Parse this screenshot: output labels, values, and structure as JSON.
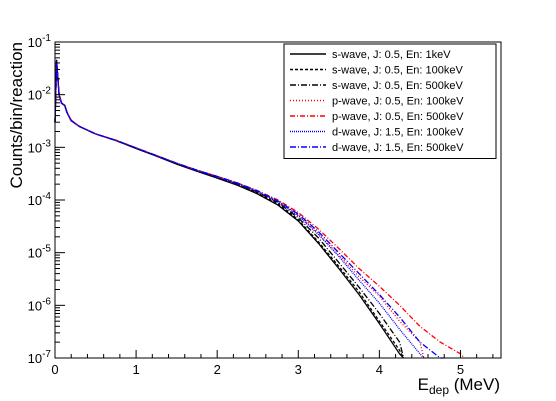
{
  "chart_data": {
    "type": "line",
    "title": "",
    "xlabel": {
      "main": "E",
      "sub": "dep",
      "unit": " (MeV)"
    },
    "ylabel": "Counts/bin/reaction",
    "xlim": [
      0,
      5.5
    ],
    "ylim": [
      1e-07,
      0.1
    ],
    "yscale": "log",
    "grid": false,
    "legend_position": "top-right",
    "x_ticks": [
      0,
      1,
      2,
      3,
      4,
      5
    ],
    "y_ticks": [
      {
        "value": 1e-07,
        "base": "10",
        "exp": "-7"
      },
      {
        "value": 1e-06,
        "base": "10",
        "exp": "-6"
      },
      {
        "value": 1e-05,
        "base": "10",
        "exp": "-5"
      },
      {
        "value": 0.0001,
        "base": "10",
        "exp": "-4"
      },
      {
        "value": 0.001,
        "base": "10",
        "exp": "-3"
      },
      {
        "value": 0.01,
        "base": "10",
        "exp": "-2"
      },
      {
        "value": 0.1,
        "base": "10",
        "exp": "-1"
      }
    ],
    "shared_x": [
      0.0,
      0.02,
      0.05,
      0.08,
      0.1,
      0.12,
      0.15,
      0.2,
      0.3,
      0.5,
      0.75,
      1.0,
      1.25,
      1.5,
      1.75,
      2.0,
      2.25,
      2.5,
      2.75,
      3.0,
      3.25,
      3.5,
      3.75,
      4.0,
      4.25,
      4.5,
      4.75,
      5.0,
      5.25
    ],
    "series": [
      {
        "name": "s-wave, J: 0.5, En: 1keV",
        "color": "#000000",
        "dash": "solid",
        "values": [
          0.003,
          0.045,
          0.01,
          0.007,
          0.0065,
          0.0063,
          0.0045,
          0.0032,
          0.0025,
          0.0018,
          0.00135,
          0.00095,
          0.00068,
          0.00048,
          0.00035,
          0.00026,
          0.00019,
          0.00013,
          8e-05,
          4e-05,
          1.5e-05,
          5e-06,
          1.6e-06,
          4.5e-07,
          1.2e-07,
          null,
          null,
          null,
          null
        ]
      },
      {
        "name": "s-wave, J: 0.5, En: 100keV",
        "color": "#000000",
        "dash": "3,2",
        "values": [
          0.003,
          0.046,
          0.0101,
          0.007,
          0.0066,
          0.0063,
          0.0045,
          0.0032,
          0.0025,
          0.0018,
          0.00136,
          0.00096,
          0.00069,
          0.00049,
          0.00036,
          0.00027,
          0.0002,
          0.000135,
          8.5e-05,
          4.2e-05,
          1.6e-05,
          5.5e-06,
          1.8e-06,
          5e-07,
          1.4e-07,
          null,
          null,
          null,
          null
        ]
      },
      {
        "name": "s-wave, J: 0.5, En: 500keV",
        "color": "#000000",
        "dash": "6,2,1,2",
        "values": [
          0.003,
          0.044,
          0.0099,
          0.0069,
          0.0065,
          0.0062,
          0.0044,
          0.0032,
          0.0025,
          0.0018,
          0.00135,
          0.00096,
          0.00069,
          0.00049,
          0.00036,
          0.00027,
          0.0002,
          0.00014,
          9e-05,
          4.6e-05,
          1.9e-05,
          6.5e-06,
          2.2e-06,
          7e-07,
          2e-07,
          null,
          null,
          null,
          null
        ]
      },
      {
        "name": "p-wave, J: 0.5, En: 100keV",
        "color": "#ff0000",
        "dash": "1,2",
        "values": [
          0.003,
          0.043,
          0.0102,
          0.0071,
          0.0066,
          0.0064,
          0.0046,
          0.0033,
          0.0025,
          0.0018,
          0.00137,
          0.00098,
          0.0007,
          0.0005,
          0.00037,
          0.00028,
          0.00021,
          0.000145,
          9.5e-05,
          5.2e-05,
          2.3e-05,
          9e-06,
          3.5e-06,
          1.5e-06,
          5e-07,
          2e-07,
          null,
          null,
          null
        ]
      },
      {
        "name": "p-wave, J: 0.5, En: 500keV",
        "color": "#ff0000",
        "dash": "5,2,1,2",
        "values": [
          0.003,
          0.042,
          0.0099,
          0.007,
          0.0065,
          0.0063,
          0.0045,
          0.0033,
          0.0025,
          0.0018,
          0.00137,
          0.00098,
          0.0007,
          0.0005,
          0.00037,
          0.00028,
          0.00021,
          0.00015,
          0.0001,
          5.8e-05,
          2.8e-05,
          1.2e-05,
          5e-06,
          2.3e-06,
          1e-06,
          4e-07,
          2e-07,
          1.2e-07,
          null
        ]
      },
      {
        "name": "d-wave, J: 1.5, En: 100keV",
        "color": "#0000ff",
        "dash": "1,1",
        "values": [
          0.003,
          0.043,
          0.01,
          0.007,
          0.0066,
          0.0063,
          0.0045,
          0.0032,
          0.0025,
          0.0018,
          0.00136,
          0.00097,
          0.00069,
          0.0005,
          0.00036,
          0.00027,
          0.0002,
          0.000145,
          9.2e-05,
          5e-05,
          2.2e-05,
          8.5e-06,
          3e-06,
          1.1e-06,
          3.5e-07,
          1.2e-07,
          null,
          null,
          null
        ]
      },
      {
        "name": "d-wave, J: 1.5, En: 500keV",
        "color": "#0000ff",
        "dash": "6,2,1,2",
        "values": [
          0.003,
          0.042,
          0.0098,
          0.0069,
          0.0065,
          0.0062,
          0.0045,
          0.0032,
          0.0025,
          0.0018,
          0.00136,
          0.00097,
          0.0007,
          0.0005,
          0.00037,
          0.00028,
          0.00021,
          0.000148,
          9.6e-05,
          5.4e-05,
          2.5e-05,
          1e-05,
          4e-06,
          1.6e-06,
          6e-07,
          2e-07,
          1e-07,
          null,
          null
        ]
      }
    ]
  }
}
